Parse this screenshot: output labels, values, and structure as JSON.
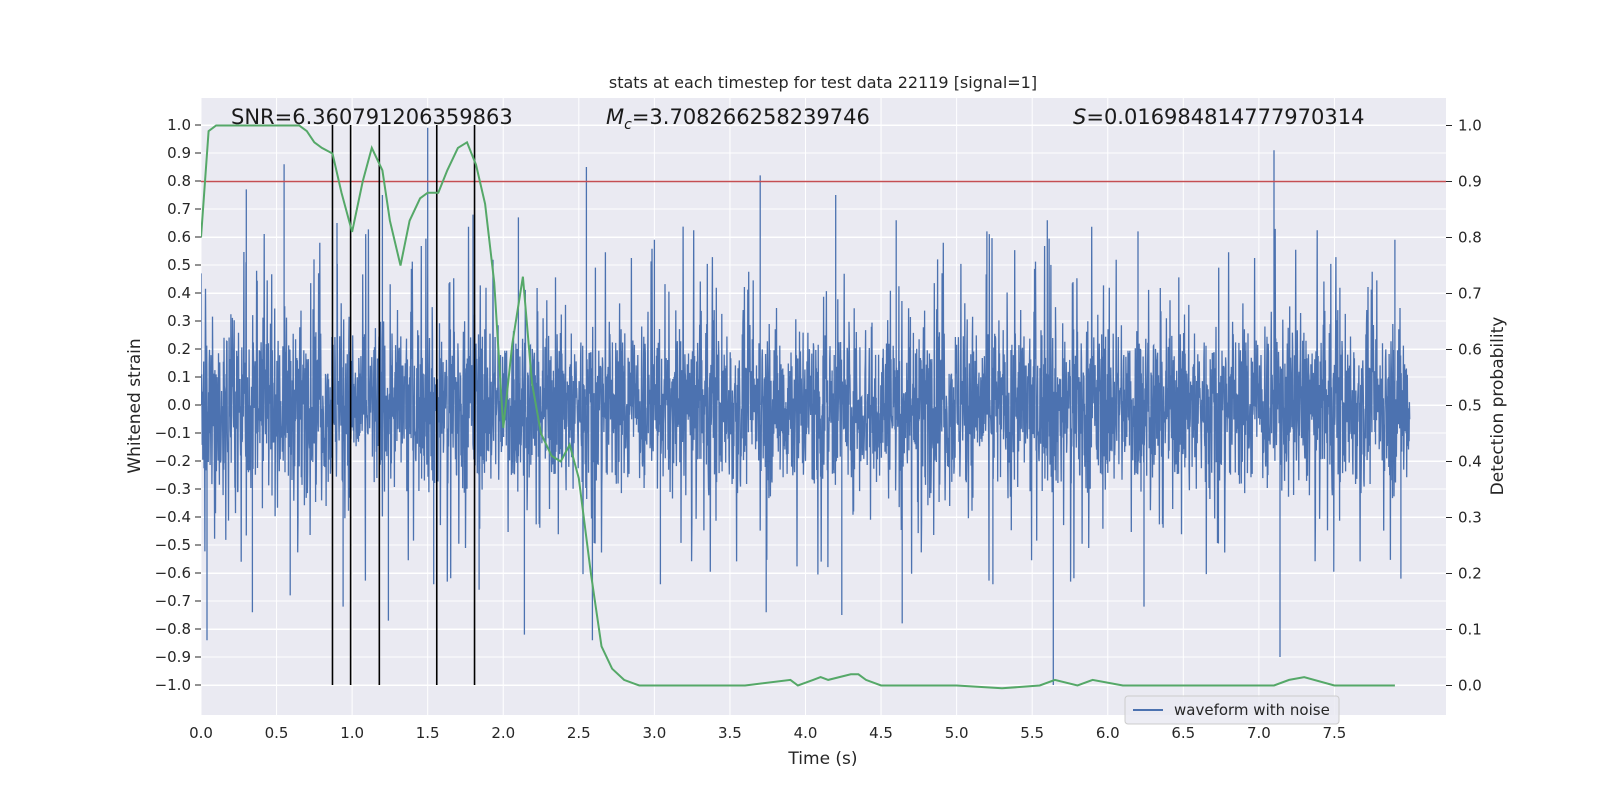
{
  "chart_data": {
    "type": "line",
    "title": "stats at each timestep for test data 22119 [signal=1]",
    "xlabel": "Time (s)",
    "ylabel": "Whitened strain",
    "y2label": "Detection probability",
    "xlim": [
      0.0,
      8.0
    ],
    "ylim": [
      -1.1,
      1.1
    ],
    "y2lim": [
      -0.05,
      1.05
    ],
    "xticks": [
      "0.0",
      "0.5",
      "1.0",
      "1.5",
      "2.0",
      "2.5",
      "3.0",
      "3.5",
      "4.0",
      "4.5",
      "5.0",
      "5.5",
      "6.0",
      "6.5",
      "7.0",
      "7.5"
    ],
    "yticks": [
      "1.0",
      "0.9",
      "0.8",
      "0.7",
      "0.6",
      "0.5",
      "0.4",
      "0.3",
      "0.2",
      "0.1",
      "0.0",
      "−0.1",
      "−0.2",
      "−0.3",
      "−0.4",
      "−0.5",
      "−0.6",
      "−0.7",
      "−0.8",
      "−0.9",
      "−1.0"
    ],
    "y2ticks": [
      "1.0",
      "0.9",
      "0.8",
      "0.7",
      "0.6",
      "0.5",
      "0.4",
      "0.3",
      "0.2",
      "0.1",
      "0.0"
    ],
    "grid": true,
    "legend": {
      "position": "lower-right",
      "entries": [
        "waveform with noise"
      ]
    },
    "annotations": {
      "snr": "SNR=6.360791206359863",
      "mc_symbol": "M",
      "mc_sub": "c",
      "mc_value": "=3.708266258239746",
      "s_symbol": "S",
      "s_value": "=0.016984814777970314"
    },
    "threshold": {
      "value": 0.9,
      "axis": "right",
      "color": "#c44e52"
    },
    "event_lines_x": [
      0.87,
      0.99,
      1.18,
      1.56,
      1.81
    ],
    "series": [
      {
        "name": "waveform with noise",
        "axis": "left",
        "color": "#4c72b0",
        "envelope_x": [
          0.0,
          0.3,
          0.55,
          0.9,
          1.2,
          1.5,
          1.8,
          2.1,
          2.55,
          3.0,
          3.7,
          4.2,
          4.6,
          5.2,
          5.6,
          6.2,
          7.1,
          7.9
        ],
        "envelope_upper": [
          0.47,
          0.77,
          0.86,
          0.65,
          0.75,
          0.99,
          0.68,
          0.67,
          0.85,
          0.59,
          0.82,
          0.75,
          0.66,
          0.62,
          0.66,
          0.62,
          0.91,
          0.59
        ],
        "envelope_lower": [
          -0.84,
          -0.74,
          -0.68,
          -0.72,
          -0.77,
          -0.64,
          -0.66,
          -0.82,
          -0.84,
          -0.64,
          -0.74,
          -0.75,
          -0.78,
          -0.64,
          -1.0,
          -0.72,
          -0.9,
          -0.62
        ],
        "typical_amplitude": 0.4
      },
      {
        "name": "",
        "axis": "right",
        "color": "#55a868",
        "x": [
          0.0,
          0.05,
          0.1,
          0.2,
          0.3,
          0.4,
          0.5,
          0.6,
          0.65,
          0.7,
          0.75,
          0.8,
          0.87,
          0.93,
          1.0,
          1.07,
          1.13,
          1.2,
          1.25,
          1.32,
          1.38,
          1.45,
          1.5,
          1.57,
          1.63,
          1.7,
          1.76,
          1.82,
          1.88,
          1.94,
          2.0,
          2.06,
          2.13,
          2.19,
          2.25,
          2.32,
          2.38,
          2.44,
          2.5,
          2.58,
          2.65,
          2.72,
          2.8,
          2.9,
          3.1,
          3.6,
          3.9,
          3.95,
          4.05,
          4.1,
          4.15,
          4.3,
          4.35,
          4.4,
          4.5,
          4.7,
          5.0,
          5.3,
          5.55,
          5.65,
          5.8,
          5.9,
          6.1,
          6.6,
          7.1,
          7.2,
          7.3,
          7.5,
          7.9
        ],
        "y": [
          0.8,
          0.99,
          1.0,
          1.0,
          1.0,
          1.0,
          1.0,
          1.0,
          1.0,
          0.99,
          0.97,
          0.96,
          0.95,
          0.88,
          0.81,
          0.9,
          0.96,
          0.92,
          0.83,
          0.75,
          0.83,
          0.87,
          0.88,
          0.88,
          0.92,
          0.96,
          0.97,
          0.93,
          0.86,
          0.72,
          0.46,
          0.61,
          0.73,
          0.54,
          0.45,
          0.41,
          0.4,
          0.43,
          0.37,
          0.2,
          0.07,
          0.03,
          0.01,
          0.0,
          0.0,
          0.0,
          0.01,
          0.0,
          0.01,
          0.015,
          0.01,
          0.02,
          0.02,
          0.01,
          0.0,
          0.0,
          0.0,
          -0.005,
          0.0,
          0.01,
          0.0,
          0.01,
          0.0,
          0.0,
          0.0,
          0.01,
          0.015,
          0.0,
          0.0
        ]
      }
    ]
  }
}
